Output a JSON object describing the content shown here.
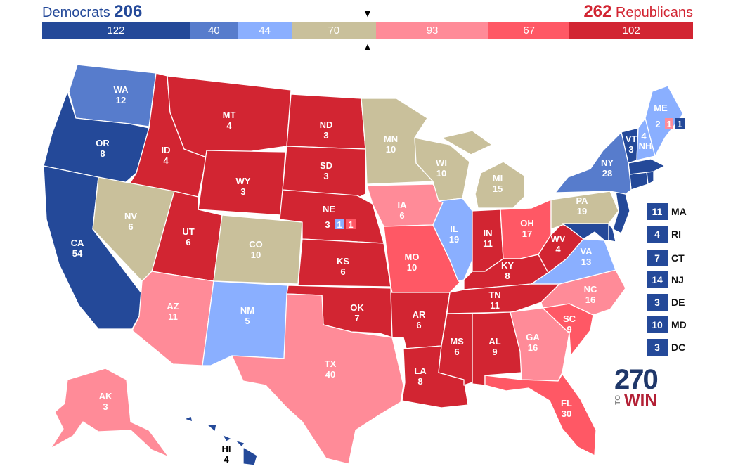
{
  "header": {
    "dem_label": "Democrats",
    "dem_total": "206",
    "rep_total": "262",
    "rep_label": "Republicans"
  },
  "colors": {
    "safe_dem": "#244999",
    "likely_dem": "#577CCC",
    "lean_dem": "#8AAFFF",
    "tossup": "#C9C09B",
    "lean_rep": "#FF8B98",
    "likely_rep": "#FF5865",
    "safe_rep": "#D22532"
  },
  "bar": [
    {
      "value": 122,
      "category": "safe_dem"
    },
    {
      "value": 40,
      "category": "likely_dem"
    },
    {
      "value": 44,
      "category": "lean_dem"
    },
    {
      "value": 70,
      "category": "tossup"
    },
    {
      "value": 93,
      "category": "lean_rep"
    },
    {
      "value": 67,
      "category": "likely_rep"
    },
    {
      "value": 102,
      "category": "safe_rep"
    }
  ],
  "states": [
    {
      "abbr": "WA",
      "ev": "12",
      "category": "likely_dem"
    },
    {
      "abbr": "OR",
      "ev": "8",
      "category": "safe_dem"
    },
    {
      "abbr": "CA",
      "ev": "54",
      "category": "safe_dem"
    },
    {
      "abbr": "ID",
      "ev": "4",
      "category": "safe_rep"
    },
    {
      "abbr": "NV",
      "ev": "6",
      "category": "tossup"
    },
    {
      "abbr": "MT",
      "ev": "4",
      "category": "safe_rep"
    },
    {
      "abbr": "WY",
      "ev": "3",
      "category": "safe_rep"
    },
    {
      "abbr": "UT",
      "ev": "6",
      "category": "safe_rep"
    },
    {
      "abbr": "AZ",
      "ev": "11",
      "category": "lean_rep"
    },
    {
      "abbr": "CO",
      "ev": "10",
      "category": "tossup"
    },
    {
      "abbr": "NM",
      "ev": "5",
      "category": "lean_dem"
    },
    {
      "abbr": "ND",
      "ev": "3",
      "category": "safe_rep"
    },
    {
      "abbr": "SD",
      "ev": "3",
      "category": "safe_rep"
    },
    {
      "abbr": "NE",
      "ev": "3",
      "category": "safe_rep"
    },
    {
      "abbr": "KS",
      "ev": "6",
      "category": "safe_rep"
    },
    {
      "abbr": "OK",
      "ev": "7",
      "category": "safe_rep"
    },
    {
      "abbr": "TX",
      "ev": "40",
      "category": "lean_rep"
    },
    {
      "abbr": "MN",
      "ev": "10",
      "category": "tossup"
    },
    {
      "abbr": "IA",
      "ev": "6",
      "category": "lean_rep"
    },
    {
      "abbr": "MO",
      "ev": "10",
      "category": "likely_rep"
    },
    {
      "abbr": "AR",
      "ev": "6",
      "category": "safe_rep"
    },
    {
      "abbr": "LA",
      "ev": "8",
      "category": "safe_rep"
    },
    {
      "abbr": "WI",
      "ev": "10",
      "category": "tossup"
    },
    {
      "abbr": "IL",
      "ev": "19",
      "category": "lean_dem"
    },
    {
      "abbr": "MI",
      "ev": "15",
      "category": "tossup"
    },
    {
      "abbr": "IN",
      "ev": "11",
      "category": "safe_rep"
    },
    {
      "abbr": "OH",
      "ev": "17",
      "category": "likely_rep"
    },
    {
      "abbr": "KY",
      "ev": "8",
      "category": "safe_rep"
    },
    {
      "abbr": "TN",
      "ev": "11",
      "category": "safe_rep"
    },
    {
      "abbr": "MS",
      "ev": "6",
      "category": "safe_rep"
    },
    {
      "abbr": "AL",
      "ev": "9",
      "category": "safe_rep"
    },
    {
      "abbr": "GA",
      "ev": "16",
      "category": "lean_rep"
    },
    {
      "abbr": "FL",
      "ev": "30",
      "category": "likely_rep"
    },
    {
      "abbr": "SC",
      "ev": "9",
      "category": "likely_rep"
    },
    {
      "abbr": "NC",
      "ev": "16",
      "category": "lean_rep"
    },
    {
      "abbr": "VA",
      "ev": "13",
      "category": "lean_dem"
    },
    {
      "abbr": "WV",
      "ev": "4",
      "category": "safe_rep"
    },
    {
      "abbr": "PA",
      "ev": "19",
      "category": "tossup"
    },
    {
      "abbr": "NY",
      "ev": "28",
      "category": "likely_dem"
    },
    {
      "abbr": "VT",
      "ev": "3",
      "category": "safe_dem"
    },
    {
      "abbr": "NH",
      "ev": "4",
      "category": "lean_dem"
    },
    {
      "abbr": "ME",
      "ev": "2",
      "category": "lean_dem"
    },
    {
      "abbr": "AK",
      "ev": "3",
      "category": "lean_rep"
    },
    {
      "abbr": "HI",
      "ev": "4",
      "category": "safe_dem"
    }
  ],
  "districts": {
    "me": [
      "1",
      "1"
    ],
    "ne": [
      "1",
      "1"
    ]
  },
  "small_states": [
    {
      "ev": "11",
      "abbr": "MA"
    },
    {
      "ev": "4",
      "abbr": "RI"
    },
    {
      "ev": "7",
      "abbr": "CT"
    },
    {
      "ev": "14",
      "abbr": "NJ"
    },
    {
      "ev": "3",
      "abbr": "DE"
    },
    {
      "ev": "10",
      "abbr": "MD"
    },
    {
      "ev": "3",
      "abbr": "DC"
    }
  ],
  "logo": {
    "number": "270",
    "to": "TO",
    "win": "WIN"
  }
}
